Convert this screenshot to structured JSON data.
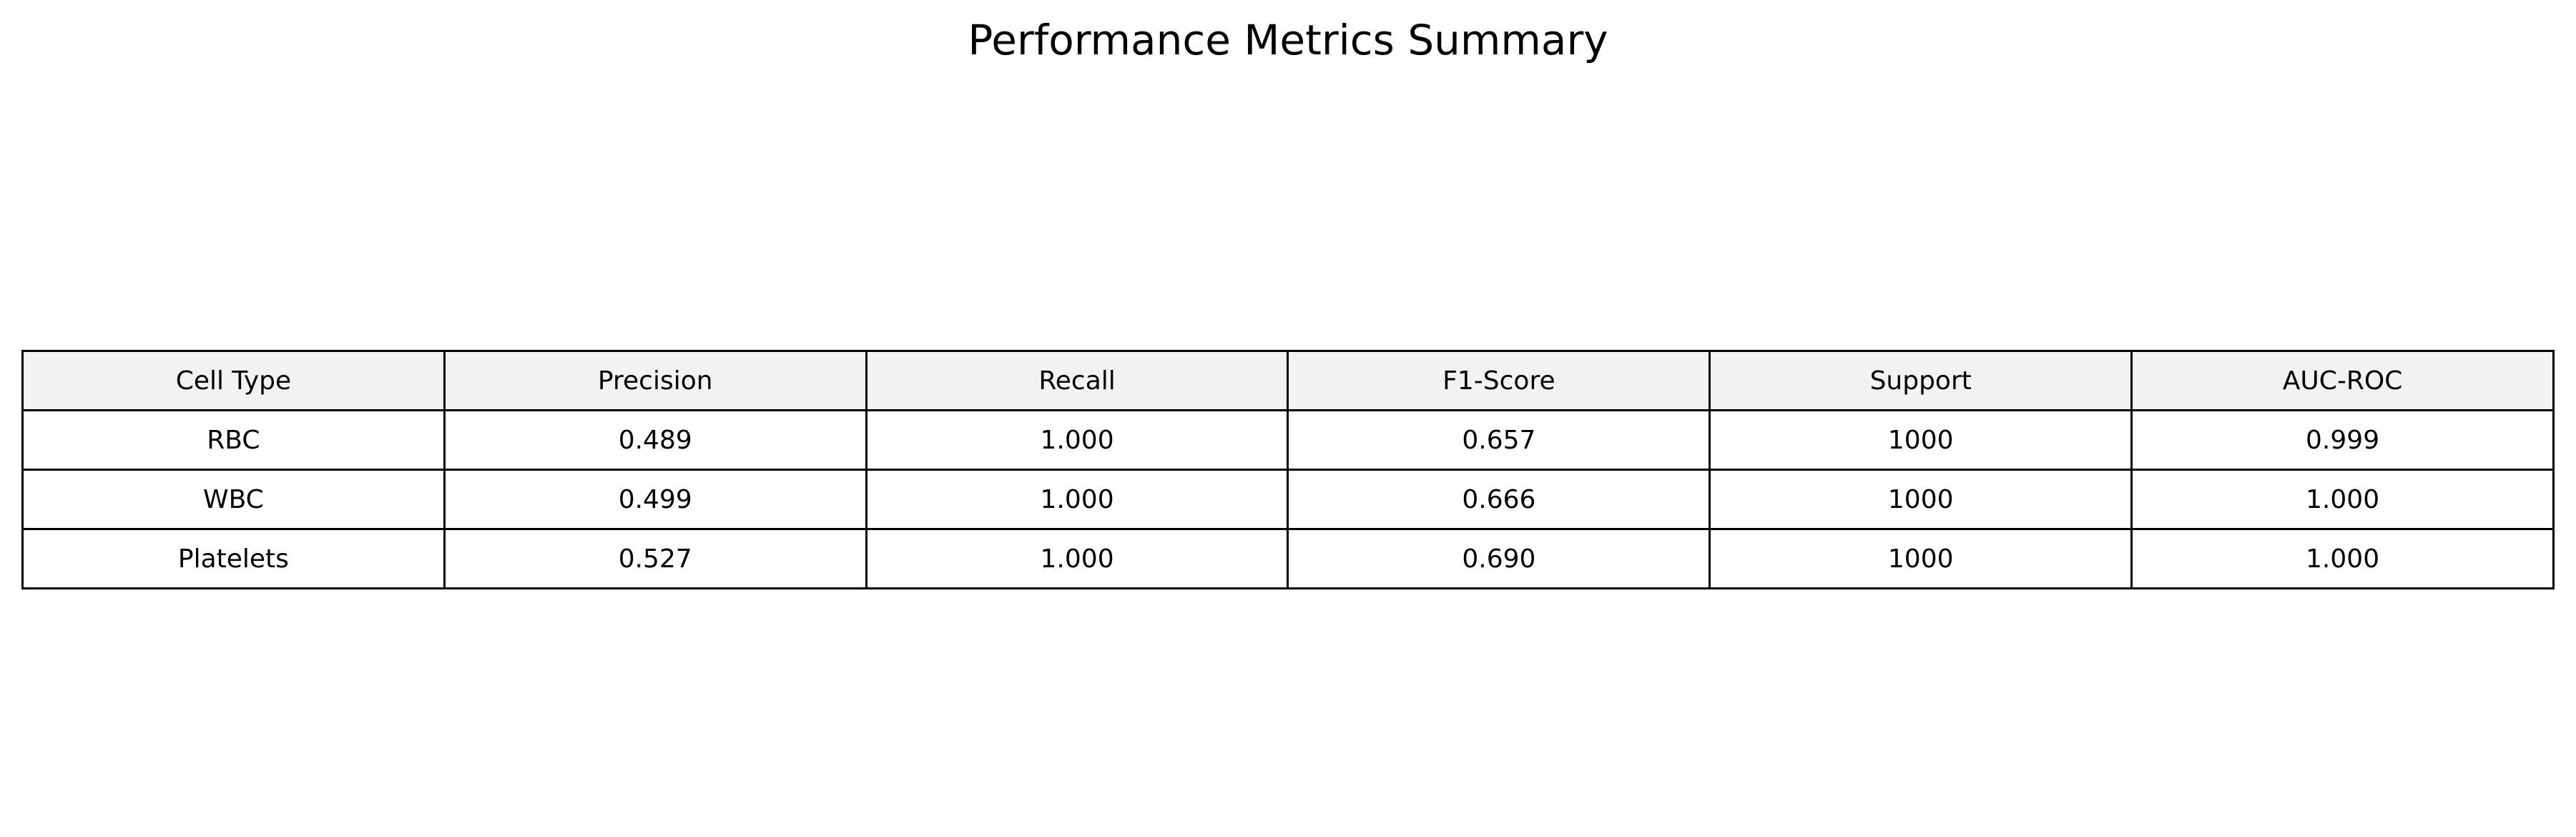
{
  "chart_data": {
    "type": "table",
    "title": "Performance Metrics Summary",
    "columns": [
      "Cell Type",
      "Precision",
      "Recall",
      "F1-Score",
      "Support",
      "AUC-ROC"
    ],
    "rows": [
      [
        "RBC",
        "0.489",
        "1.000",
        "0.657",
        "1000",
        "0.999"
      ],
      [
        "WBC",
        "0.499",
        "1.000",
        "0.666",
        "1000",
        "1.000"
      ],
      [
        "Platelets",
        "0.527",
        "1.000",
        "0.690",
        "1000",
        "1.000"
      ]
    ],
    "header_color": "#f2f2f2",
    "border_color": "#000000"
  }
}
